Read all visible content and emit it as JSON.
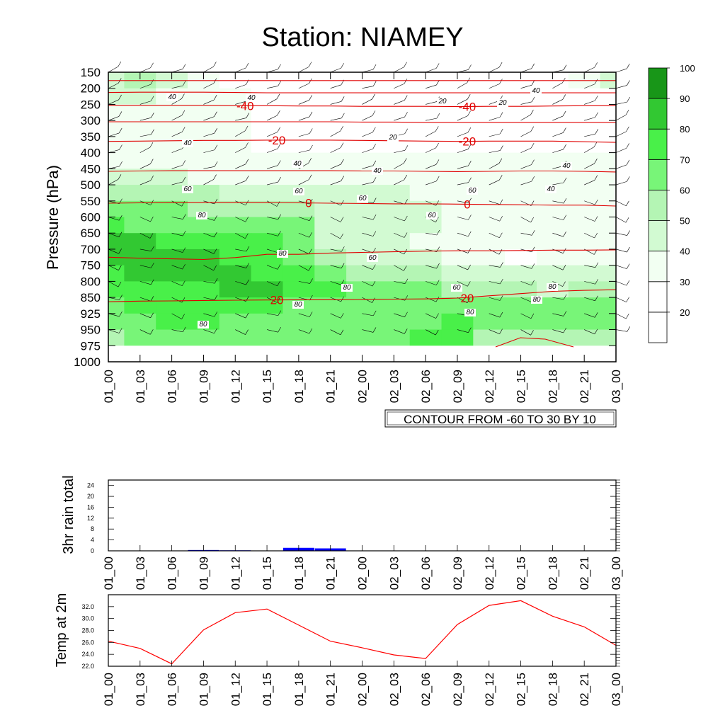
{
  "figure": {
    "title": "Station: NIAMEY",
    "contour_note": "CONTOUR FROM -60 TO 30 BY 10"
  },
  "colors": {
    "rh_levels": [
      "#ffffff",
      "#f2fff2",
      "#d2fad2",
      "#b4f5b4",
      "#78f578",
      "#49f049",
      "#32c832",
      "#189618"
    ],
    "temperature": "#e00000",
    "rain_bar": "#0000ff",
    "temp2m_line": "#ff0000"
  },
  "chart_data": [
    {
      "type": "heatmap",
      "name": "time-pressure cross-section",
      "ylabel": "Pressure (hPa)",
      "y_ticks": [
        "150",
        "200",
        "250",
        "300",
        "350",
        "400",
        "450",
        "500",
        "550",
        "600",
        "650",
        "700",
        "750",
        "800",
        "850",
        "925",
        "950",
        "975",
        "1000"
      ],
      "x_ticks": [
        "01_00",
        "01_03",
        "01_06",
        "01_09",
        "01_12",
        "01_15",
        "01_18",
        "01_21",
        "02_00",
        "02_03",
        "02_06",
        "02_09",
        "02_12",
        "02_15",
        "02_18",
        "02_21",
        "03_00"
      ],
      "colorbar": {
        "labels": [
          "20",
          "30",
          "40",
          "50",
          "60",
          "70",
          "80",
          "90",
          "100"
        ],
        "colors": [
          "#ffffff",
          "#ffffff",
          "#f2fff2",
          "#d2fad2",
          "#b4f5b4",
          "#78f578",
          "#49f049",
          "#32c832",
          "#189618"
        ]
      },
      "rh_grid": [
        [
          50,
          60,
          55,
          40,
          35,
          30,
          30,
          30,
          30,
          30,
          30,
          30,
          30,
          30,
          30,
          40,
          55
        ],
        [
          50,
          50,
          45,
          40,
          40,
          30,
          30,
          30,
          30,
          30,
          30,
          30,
          30,
          30,
          30,
          30,
          30
        ],
        [
          40,
          40,
          40,
          40,
          40,
          30,
          30,
          30,
          30,
          30,
          30,
          30,
          30,
          30,
          30,
          30,
          30
        ],
        [
          40,
          40,
          40,
          40,
          40,
          30,
          30,
          30,
          30,
          30,
          30,
          30,
          30,
          30,
          30,
          30,
          30
        ],
        [
          40,
          40,
          40,
          40,
          40,
          30,
          30,
          30,
          30,
          30,
          30,
          30,
          30,
          30,
          30,
          30,
          30
        ],
        [
          45,
          45,
          45,
          40,
          40,
          40,
          40,
          40,
          40,
          40,
          40,
          40,
          40,
          40,
          40,
          40,
          40
        ],
        [
          55,
          55,
          50,
          45,
          45,
          45,
          45,
          45,
          40,
          40,
          40,
          40,
          40,
          40,
          40,
          40,
          40
        ],
        [
          65,
          65,
          60,
          60,
          55,
          55,
          50,
          50,
          50,
          50,
          45,
          40,
          40,
          40,
          40,
          40,
          40
        ],
        [
          75,
          75,
          70,
          65,
          65,
          65,
          65,
          55,
          55,
          55,
          50,
          45,
          40,
          40,
          40,
          40,
          45
        ],
        [
          80,
          75,
          75,
          75,
          75,
          75,
          75,
          55,
          55,
          55,
          50,
          45,
          40,
          40,
          40,
          40,
          45
        ],
        [
          95,
          95,
          85,
          85,
          80,
          80,
          75,
          55,
          50,
          50,
          45,
          45,
          40,
          40,
          40,
          40,
          45
        ],
        [
          95,
          95,
          95,
          90,
          85,
          80,
          75,
          60,
          55,
          50,
          50,
          45,
          40,
          35,
          40,
          40,
          45
        ],
        [
          85,
          95,
          95,
          95,
          95,
          85,
          85,
          70,
          65,
          60,
          60,
          55,
          50,
          50,
          50,
          50,
          50
        ],
        [
          85,
          85,
          85,
          85,
          95,
          95,
          85,
          80,
          75,
          75,
          70,
          65,
          60,
          60,
          55,
          60,
          60
        ],
        [
          75,
          80,
          85,
          85,
          85,
          85,
          75,
          75,
          75,
          75,
          75,
          75,
          75,
          75,
          75,
          75,
          75
        ],
        [
          70,
          75,
          80,
          80,
          75,
          75,
          75,
          75,
          75,
          75,
          75,
          85,
          70,
          70,
          70,
          70,
          70
        ],
        [
          65,
          70,
          70,
          70,
          70,
          70,
          70,
          75,
          75,
          75,
          80,
          85,
          65,
          65,
          65,
          60,
          65
        ],
        [
          65,
          70,
          65,
          65,
          65,
          70,
          70,
          75,
          75,
          75,
          80,
          85,
          65,
          60,
          65,
          60,
          65
        ]
      ],
      "temperature_contours": [
        {
          "label": "-40",
          "level": -40,
          "p": [
            253,
            253,
            253,
            253,
            254,
            254,
            255,
            255,
            256,
            256,
            256,
            257,
            256,
            256,
            255,
            254,
            254
          ]
        },
        {
          "label": "-20",
          "level": -20,
          "p": [
            365,
            364,
            363,
            362,
            362,
            361,
            361,
            361,
            362,
            363,
            364,
            365,
            364,
            364,
            364,
            366,
            368
          ]
        },
        {
          "label": "0",
          "level": 0,
          "p": [
            557,
            556,
            555,
            555,
            555,
            555,
            556,
            557,
            558,
            559,
            559,
            560,
            561,
            562,
            563,
            563,
            566
          ]
        },
        {
          "label": "20",
          "level": 20,
          "p": [
            870,
            867,
            866,
            864,
            863,
            862,
            861,
            861,
            860,
            858,
            857,
            853,
            845,
            838,
            831,
            828,
            826
          ]
        },
        {
          "label": "",
          "level": 10,
          "p": [
            725,
            728,
            730,
            732,
            726,
            716,
            716,
            712,
            710,
            708,
            706,
            705,
            705,
            704,
            703,
            703,
            702
          ]
        },
        {
          "label": "",
          "level": -50,
          "p": [
            213,
            212,
            212,
            212,
            213,
            214,
            214,
            214,
            214,
            214,
            214,
            214,
            214,
            214,
            214,
            214,
            214
          ]
        },
        {
          "label": "",
          "level": -55,
          "p": [
            176,
            176,
            176,
            176,
            176,
            176,
            176,
            176,
            176,
            176,
            176,
            176,
            176,
            176,
            176,
            176,
            176
          ]
        },
        {
          "label": "",
          "level": -30,
          "p": [
            304,
            304,
            304,
            304,
            304,
            304,
            304,
            304,
            305,
            305,
            306,
            306,
            306,
            306,
            306,
            306,
            306
          ]
        },
        {
          "label": "",
          "level": -10,
          "p": [
            458,
            457,
            456,
            456,
            456,
            456,
            456,
            456,
            457,
            457,
            458,
            459,
            458,
            457,
            457,
            458,
            460
          ]
        }
      ],
      "rh_contour_labels": [
        "40",
        "40",
        "40",
        "20",
        "20",
        "20",
        "40",
        "40",
        "40",
        "60",
        "60",
        "60",
        "80",
        "80",
        "80",
        "80",
        "60",
        "60",
        "60",
        "80",
        "80",
        "60",
        "80",
        "80",
        "40",
        "40"
      ]
    },
    {
      "type": "bar",
      "ylabel": "3hr rain total",
      "y_ticks": [
        "24",
        "20",
        "16",
        "12",
        "8",
        "4",
        "0"
      ],
      "ylim": [
        0,
        26
      ],
      "categories": [
        "01_00",
        "01_03",
        "01_06",
        "01_09",
        "01_12",
        "01_15",
        "01_18",
        "01_21",
        "02_00",
        "02_03",
        "02_06",
        "02_09",
        "02_12",
        "02_15",
        "02_18",
        "02_21",
        "03_00"
      ],
      "values": [
        0,
        0,
        0.1,
        0.3,
        0.2,
        0,
        1.1,
        0.9,
        0.1,
        0,
        0,
        0,
        0,
        0,
        0,
        0,
        0
      ]
    },
    {
      "type": "line",
      "ylabel": "Temp at 2m",
      "y_ticks": [
        "32.0",
        "30.0",
        "28.0",
        "26.0",
        "24.0",
        "22.0"
      ],
      "ylim": [
        22.0,
        34.0
      ],
      "categories": [
        "01_00",
        "01_03",
        "01_06",
        "01_09",
        "01_12",
        "01_15",
        "01_18",
        "01_21",
        "02_00",
        "02_03",
        "02_06",
        "02_09",
        "02_12",
        "02_15",
        "02_18",
        "02_21",
        "03_00"
      ],
      "values": [
        26.2,
        25.0,
        22.4,
        28.1,
        31.0,
        31.6,
        28.9,
        26.2,
        25.1,
        23.9,
        23.3,
        29.0,
        32.2,
        33.0,
        30.4,
        28.6,
        25.5
      ]
    }
  ]
}
